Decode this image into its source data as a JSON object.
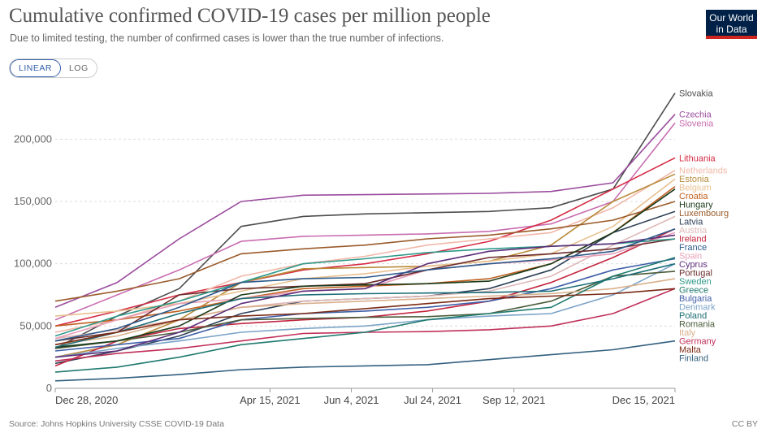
{
  "title": "Cumulative confirmed COVID-19 cases per million people",
  "subtitle": "Due to limited testing, the number of confirmed cases is lower than the true number of infections.",
  "logo": {
    "line1": "Our World",
    "line2": "in Data"
  },
  "scale_toggle": {
    "linear": "LINEAR",
    "log": "LOG",
    "selected": "LINEAR"
  },
  "source": "Source: Johns Hopkins University CSSE COVID-19 Data",
  "license": "CC BY",
  "chart_data": {
    "type": "line",
    "x_ticks": [
      "Dec 28, 2020",
      "Apr 15, 2021",
      "Jun 4, 2021",
      "Jul 24, 2021",
      "Sep 12, 2021",
      "Dec 15, 2021"
    ],
    "y_ticks": [
      "0",
      "50,000",
      "100,000",
      "150,000",
      "200,000"
    ],
    "ylim": [
      0,
      240000
    ],
    "grid": "horizontal dashed",
    "legend": "inline labels at right end",
    "series": [
      {
        "name": "Slovakia",
        "color": "#4d4d4d",
        "values": [
          32000,
          58000,
          80000,
          130000,
          138000,
          140000,
          141000,
          142000,
          145000,
          160000,
          237000
        ]
      },
      {
        "name": "Czechia",
        "color": "#9a4c9e",
        "values": [
          65000,
          85000,
          120000,
          150000,
          155000,
          155500,
          156000,
          156500,
          158000,
          165000,
          220000
        ]
      },
      {
        "name": "Slovenia",
        "color": "#c86db0",
        "values": [
          55000,
          75000,
          95000,
          118000,
          122000,
          123000,
          124000,
          126000,
          132000,
          150000,
          213000
        ]
      },
      {
        "name": "Lithuania",
        "color": "#d62c45",
        "values": [
          50000,
          62000,
          75000,
          85000,
          95000,
          100000,
          108000,
          118000,
          135000,
          160000,
          185000
        ]
      },
      {
        "name": "Netherlands",
        "color": "#f0b8a8",
        "values": [
          45000,
          55000,
          70000,
          90000,
          100000,
          106000,
          115000,
          120000,
          125000,
          145000,
          175000
        ]
      },
      {
        "name": "Estonia",
        "color": "#b88b3a",
        "values": [
          25000,
          35000,
          55000,
          85000,
          96000,
          97000,
          98000,
          102000,
          115000,
          150000,
          172000
        ]
      },
      {
        "name": "Belgium",
        "color": "#e8c090",
        "values": [
          58000,
          62000,
          68000,
          78000,
          88000,
          92000,
          98000,
          102000,
          108000,
          130000,
          168000
        ]
      },
      {
        "name": "Croatia",
        "color": "#c0601f",
        "values": [
          50000,
          55000,
          62000,
          72000,
          80000,
          82000,
          84000,
          88000,
          100000,
          125000,
          162000
        ]
      },
      {
        "name": "Luxembourg",
        "color": "#9a5b2b",
        "values": [
          70000,
          78000,
          88000,
          108000,
          112000,
          115000,
          120000,
          123000,
          128000,
          135000,
          150000
        ]
      },
      {
        "name": "Latvia",
        "color": "#2e4057",
        "values": [
          20000,
          30000,
          42000,
          60000,
          70000,
          72000,
          74000,
          80000,
          95000,
          125000,
          142000
        ]
      },
      {
        "name": "Austria",
        "color": "#e0b8b8",
        "values": [
          40000,
          47000,
          55000,
          65000,
          70000,
          72000,
          74000,
          78000,
          90000,
          115000,
          138000
        ]
      },
      {
        "name": "Ireland",
        "color": "#c3253f",
        "values": [
          18000,
          38000,
          48000,
          52000,
          55000,
          57000,
          62000,
          70000,
          85000,
          105000,
          128000
        ]
      },
      {
        "name": "Spain",
        "color": "#e8a0b8",
        "values": [
          40000,
          55000,
          68000,
          72000,
          78000,
          80000,
          95000,
          100000,
          103000,
          108000,
          125000
        ]
      },
      {
        "name": "Portugal",
        "color": "#6b2c2c",
        "values": [
          38000,
          45000,
          75000,
          80000,
          82000,
          84000,
          95000,
          105000,
          108000,
          112000,
          120000
        ]
      },
      {
        "name": "Bulgaria",
        "color": "#3f5fa8",
        "values": [
          30000,
          35000,
          40000,
          55000,
          60000,
          62000,
          65000,
          70000,
          80000,
          95000,
          104000
        ]
      },
      {
        "name": "Denmark",
        "color": "#7ca3c8",
        "values": [
          25000,
          32000,
          38000,
          45000,
          48000,
          50000,
          55000,
          58000,
          60000,
          75000,
          100000
        ]
      },
      {
        "name": "Romania",
        "color": "#4a5c3a",
        "values": [
          32000,
          38000,
          45000,
          55000,
          56000,
          57000,
          57500,
          60000,
          70000,
          90000,
          94000
        ]
      },
      {
        "name": "Italy",
        "color": "#d9b08c",
        "values": [
          35000,
          42000,
          55000,
          65000,
          68000,
          70000,
          72000,
          74000,
          76000,
          80000,
          88000
        ]
      },
      {
        "name": "Germany",
        "color": "#c0305a",
        "values": [
          22000,
          28000,
          32000,
          38000,
          44000,
          45000,
          45500,
          47000,
          50000,
          60000,
          80000
        ]
      },
      {
        "name": "Finland",
        "color": "#33607f",
        "values": [
          6000,
          8000,
          11000,
          15000,
          17000,
          18000,
          19000,
          23000,
          27000,
          31000,
          38000
        ]
      },
      {
        "name": "Hungary",
        "color": "#1a3a1a",
        "values": [
          33000,
          38000,
          50000,
          75000,
          82000,
          83000,
          84000,
          86000,
          100000,
          125000,
          160000
        ]
      },
      {
        "name": "Greece",
        "color": "#1f7a6f",
        "values": [
          13000,
          17000,
          25000,
          35000,
          40000,
          45000,
          55000,
          60000,
          65000,
          90000,
          105000
        ]
      },
      {
        "name": "Poland",
        "color": "#1b6e77",
        "values": [
          33000,
          45000,
          60000,
          72000,
          75000,
          76000,
          76500,
          77000,
          78000,
          88000,
          100000
        ]
      },
      {
        "name": "Sweden",
        "color": "#2f9a8b",
        "values": [
          42000,
          58000,
          70000,
          85000,
          100000,
          104000,
          109000,
          112000,
          114000,
          116000,
          120000
        ]
      },
      {
        "name": "Cyprus",
        "color": "#5c2e7a",
        "values": [
          25000,
          30000,
          45000,
          68000,
          78000,
          80000,
          100000,
          110000,
          114000,
          116000,
          123000
        ]
      },
      {
        "name": "France",
        "color": "#2d5a8a",
        "values": [
          38000,
          48000,
          65000,
          85000,
          88000,
          89000,
          95000,
          100000,
          104000,
          110000,
          128000
        ]
      },
      {
        "name": "Malta",
        "color": "#7a2a15",
        "values": [
          35000,
          45000,
          55000,
          58000,
          60000,
          64000,
          68000,
          72000,
          74000,
          76000,
          80000
        ]
      }
    ],
    "x_positions": [
      0,
      0.1,
      0.2,
      0.3,
      0.4,
      0.5,
      0.6,
      0.7,
      0.8,
      0.9,
      1.0
    ]
  }
}
